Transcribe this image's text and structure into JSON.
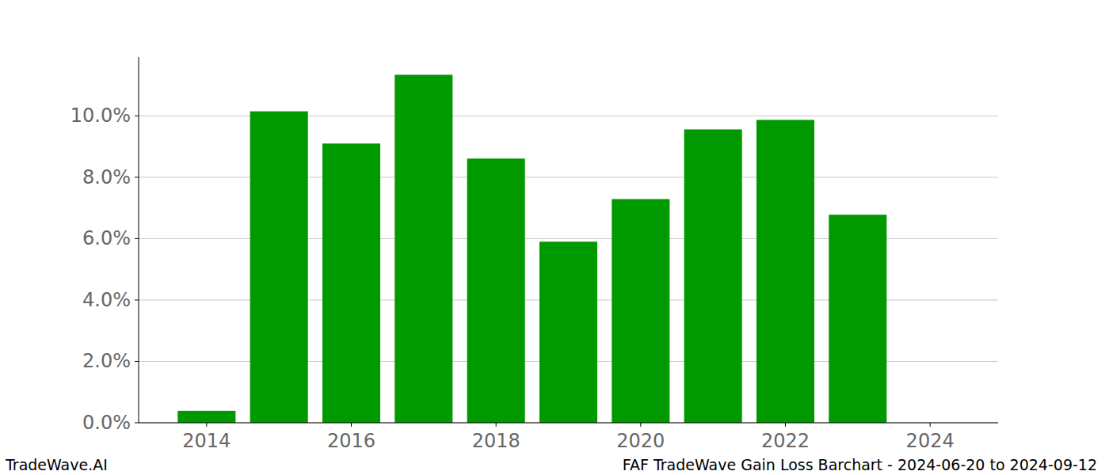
{
  "chart_data": {
    "type": "bar",
    "title": "FAF TradeWave Gain Loss Barchart - 2024-06-20 to 2024-09-12",
    "annotations": [
      "TradeWave.AI"
    ],
    "x": [
      2014,
      2015,
      2016,
      2017,
      2018,
      2019,
      2020,
      2021,
      2022,
      2023,
      2024
    ],
    "values": [
      0.39,
      10.15,
      9.1,
      11.34,
      8.61,
      5.9,
      7.29,
      9.56,
      9.87,
      6.78,
      0
    ],
    "color": "#009900",
    "xlim": [
      2013.06,
      2024.94
    ],
    "xticks": [
      2014,
      2016,
      2018,
      2020,
      2022,
      2024
    ],
    "ylim": [
      0,
      11.92
    ],
    "yticks": [
      {
        "value": 0,
        "label": "0.0%"
      },
      {
        "value": 2,
        "label": "2.0%"
      },
      {
        "value": 4,
        "label": "4.0%"
      },
      {
        "value": 6,
        "label": "6.0%"
      },
      {
        "value": 8,
        "label": "8.0%"
      },
      {
        "value": 10,
        "label": "10.0%"
      }
    ],
    "grid": true
  }
}
